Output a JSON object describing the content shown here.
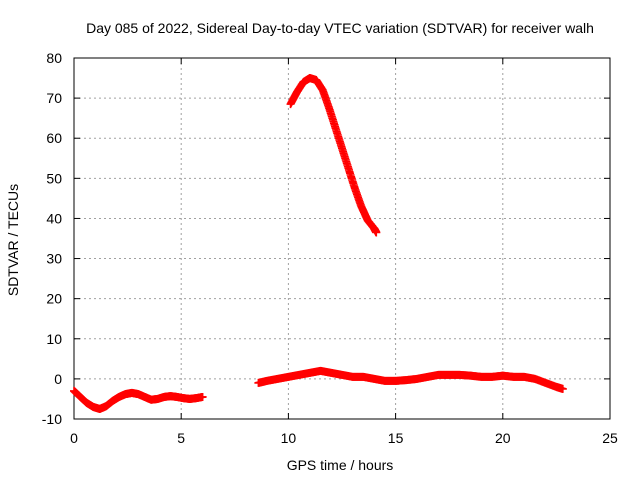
{
  "chart_data": {
    "type": "scatter",
    "title": "Day 085 of 2022, Sidereal Day-to-day VTEC variation (SDTVAR) for receiver walh",
    "xlabel": "GPS time / hours",
    "ylabel": "SDTVAR / TECUs",
    "xlim": [
      0,
      25
    ],
    "ylim": [
      -10,
      80
    ],
    "xticks": [
      0,
      5,
      10,
      15,
      20,
      25
    ],
    "yticks": [
      -10,
      0,
      10,
      20,
      30,
      40,
      50,
      60,
      70,
      80
    ],
    "grid": true,
    "legend": "none",
    "marker": "plus",
    "color": "#ff0000",
    "series": [
      {
        "name": "segment-1",
        "x": [
          0.0,
          0.3,
          0.6,
          0.9,
          1.2,
          1.5,
          1.8,
          2.1,
          2.4,
          2.7,
          3.0,
          3.3,
          3.6,
          3.9,
          4.2,
          4.5,
          4.8,
          5.1,
          5.4,
          5.7,
          6.0
        ],
        "y": [
          -3.0,
          -4.5,
          -6.0,
          -7.0,
          -7.5,
          -6.8,
          -5.5,
          -4.5,
          -3.8,
          -3.5,
          -3.8,
          -4.5,
          -5.2,
          -5.0,
          -4.5,
          -4.3,
          -4.5,
          -4.8,
          -5.0,
          -4.8,
          -4.5
        ]
      },
      {
        "name": "segment-2",
        "x": [
          10.1,
          10.4,
          10.7,
          11.0,
          11.3,
          11.6,
          11.9,
          12.2,
          12.5,
          12.8,
          13.1,
          13.4,
          13.7,
          14.0,
          14.1
        ],
        "y": [
          68.5,
          71.5,
          74.0,
          75.0,
          74.5,
          72.0,
          67.5,
          62.5,
          57.5,
          52.5,
          47.5,
          43.0,
          39.5,
          37.5,
          36.5
        ]
      },
      {
        "name": "segment-3",
        "x": [
          8.6,
          9.0,
          9.5,
          10.0,
          10.5,
          11.0,
          11.5,
          12.0,
          12.5,
          13.0,
          13.5,
          14.0,
          14.5,
          15.0,
          15.5,
          16.0,
          16.5,
          17.0,
          17.5,
          18.0,
          18.5,
          19.0,
          19.5,
          20.0,
          20.5,
          21.0,
          21.5,
          22.0,
          22.5,
          22.8
        ],
        "y": [
          -1.0,
          -0.5,
          0.0,
          0.5,
          1.0,
          1.5,
          2.0,
          1.5,
          1.0,
          0.5,
          0.5,
          0.0,
          -0.5,
          -0.5,
          -0.3,
          0.0,
          0.5,
          1.0,
          1.0,
          1.0,
          0.8,
          0.5,
          0.5,
          0.8,
          0.5,
          0.5,
          0.0,
          -1.0,
          -2.0,
          -2.5
        ]
      }
    ]
  }
}
